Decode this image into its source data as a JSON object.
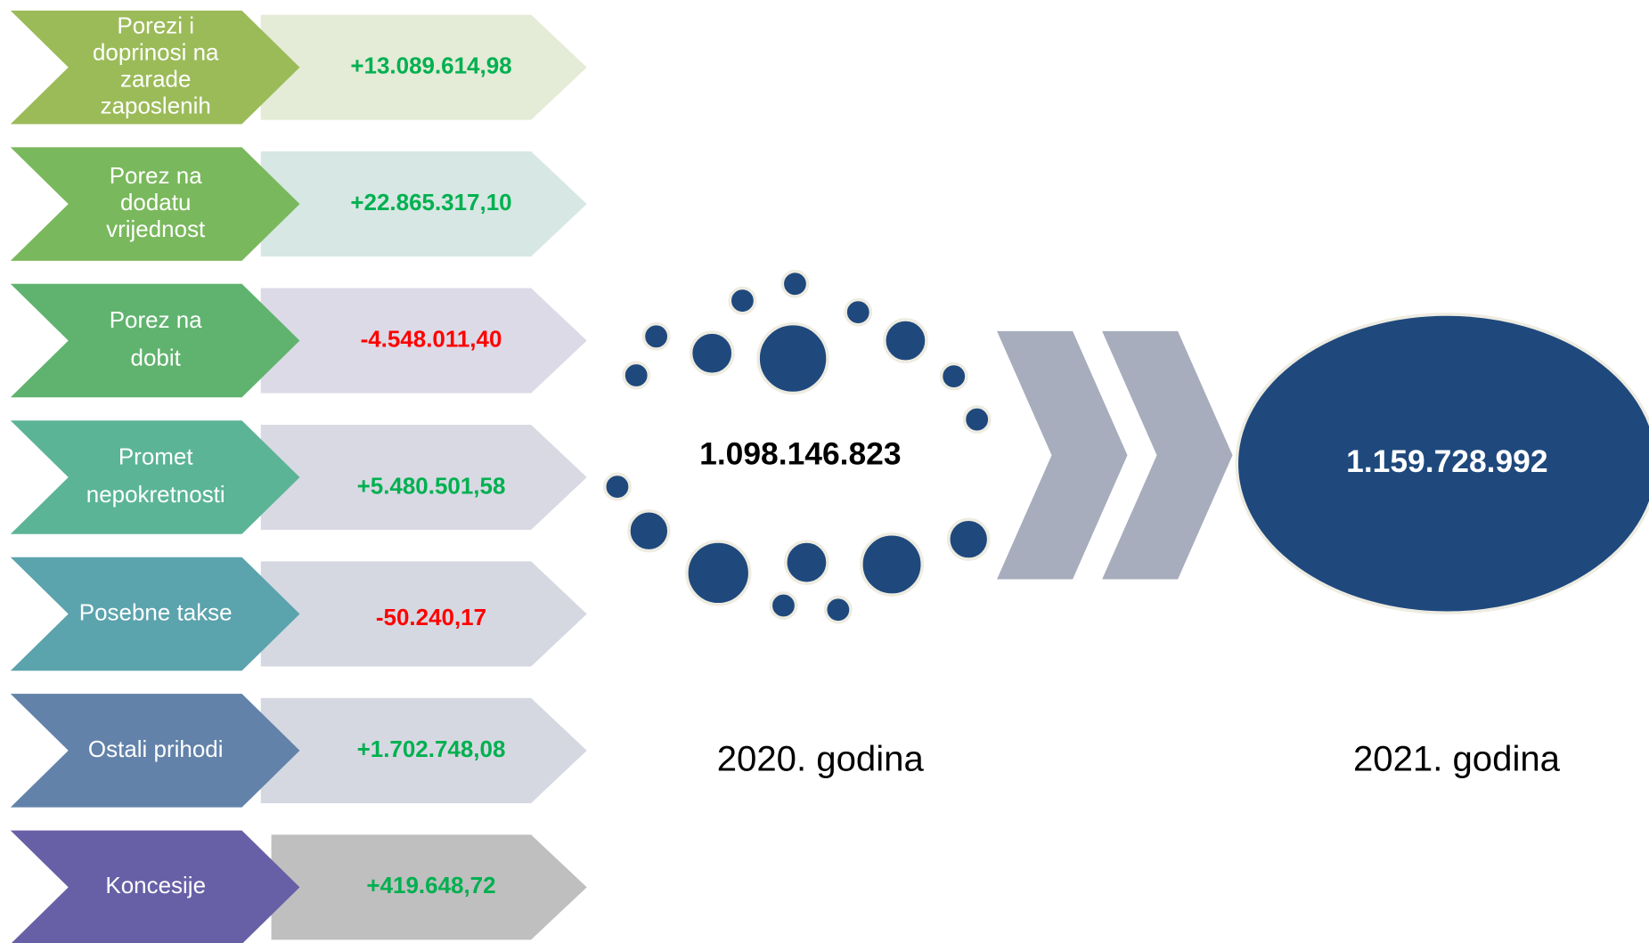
{
  "items": [
    {
      "label_lines": [
        "Porezi i",
        "doprinosi na",
        "zarade",
        "zaposlenih"
      ],
      "value": "+13.089.614,98",
      "color": "#9bbb59",
      "pale": "#e4ebd6",
      "value_color": "#00b050"
    },
    {
      "label_lines": [
        "Porez na",
        "dodatu",
        "vrijednost"
      ],
      "value": "+22.865.317,10",
      "color": "#79b85c",
      "pale": "#d7e7e3",
      "value_color": "#00b050"
    },
    {
      "label_lines": [
        "Porez na",
        "dobit"
      ],
      "value": "-4.548.011,40",
      "color": "#60b36e",
      "pale": "#dcdae6",
      "value_color": "#ff0000"
    },
    {
      "label_lines": [
        "Promet",
        "nepokretnosti"
      ],
      "value": "+5.480.501,58",
      "color": "#5bb496",
      "pale": "#d8d9e3",
      "value_color": "#00b050"
    },
    {
      "label_lines": [
        "Posebne takse"
      ],
      "value": "-50.240,17",
      "color": "#5ba3ad",
      "pale": "#d5d8e1",
      "value_color": "#ff0000"
    },
    {
      "label_lines": [
        "Ostali prihodi"
      ],
      "value": "+1.702.748,08",
      "color": "#6282a9",
      "pale": "#d5d8e1",
      "value_color": "#00b050"
    },
    {
      "label_lines": [
        "Koncesije"
      ],
      "value": "+419.648,72",
      "color": "#6860a6",
      "pale": "#bfbfbf",
      "value_color": "#00b050"
    }
  ],
  "total_2020": "1.098.146.823",
  "total_2021": "1.159.728.992",
  "year_2020": "2020. godina",
  "year_2021": "2021. godina"
}
